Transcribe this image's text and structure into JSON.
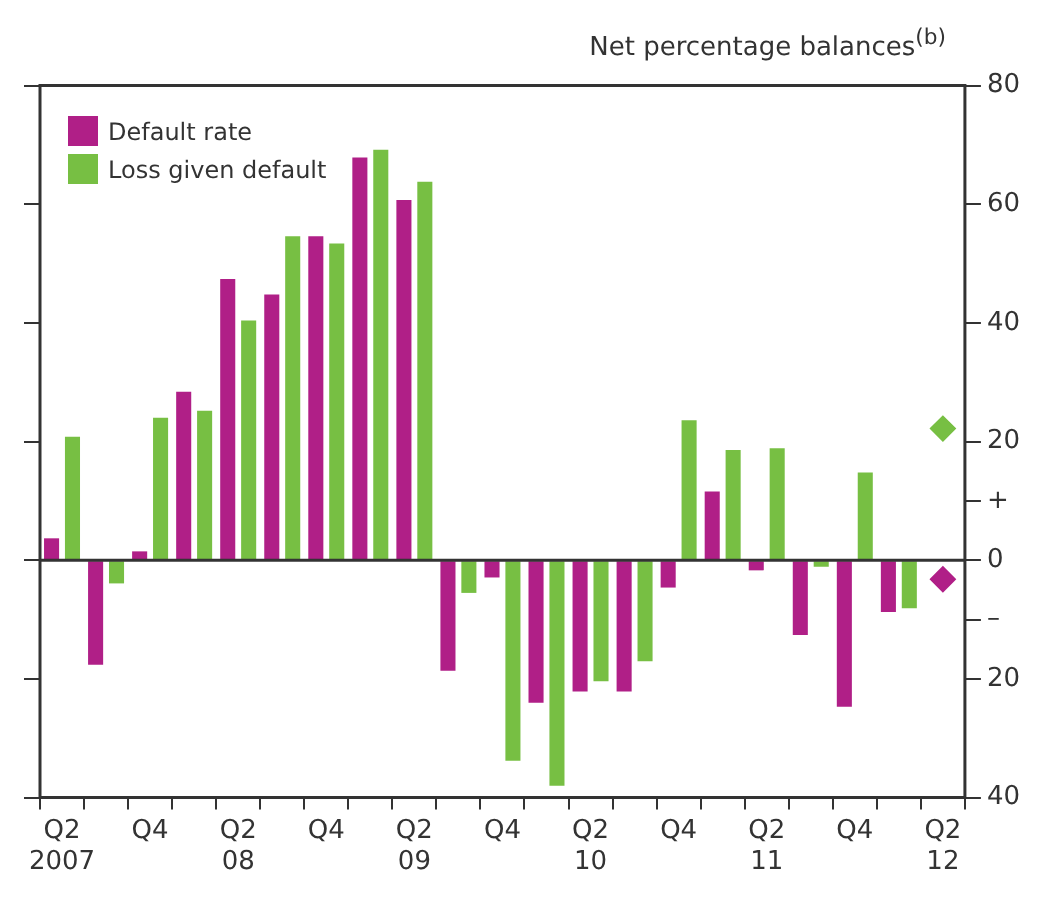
{
  "chart_data": {
    "type": "bar",
    "ylabel": "Net percentage balances$^{(b)}$",
    "categories": [
      "Q2\n2007",
      null,
      "Q4",
      null,
      "Q2\n08",
      null,
      "Q4",
      null,
      "Q2\n09",
      null,
      "Q4",
      null,
      "Q2\n10",
      null,
      "Q4",
      null,
      "Q2\n11",
      null,
      "Q4",
      null,
      "Q2\n12"
    ],
    "series": [
      {
        "name": "Default rate",
        "color": "#b01f87",
        "values": [
          3.7,
          -17.6,
          1.5,
          28.4,
          47.4,
          44.8,
          54.6,
          67.9,
          60.7,
          -18.6,
          -2.9,
          -24,
          -22.1,
          -22.1,
          -4.6,
          11.6,
          -1.7,
          -12.6,
          -24.7,
          -8.7,
          null
        ]
      },
      {
        "name": "Loss given default",
        "color": "#77bf43",
        "values": [
          20.8,
          -3.9,
          24,
          25.2,
          40.4,
          54.6,
          53.4,
          69.2,
          63.8,
          -5.5,
          -33.8,
          -38,
          -20.4,
          -17,
          23.6,
          18.6,
          18.9,
          -1.1,
          14.8,
          -8.1,
          null
        ]
      },
      {
        "type": "scatter",
        "color": "#b01f87",
        "values": [
          null,
          null,
          null,
          null,
          null,
          null,
          null,
          null,
          null,
          null,
          null,
          null,
          null,
          null,
          null,
          null,
          null,
          null,
          null,
          null,
          -3.2
        ]
      },
      {
        "type": "scatter",
        "color": "#77bf43",
        "values": [
          null,
          null,
          null,
          null,
          null,
          null,
          null,
          null,
          null,
          null,
          null,
          null,
          null,
          null,
          null,
          null,
          null,
          null,
          null,
          null,
          22.2
        ]
      }
    ],
    "ylim": [
      -40,
      80
    ],
    "yticks": [
      80,
      60,
      40,
      {
        "value": 10,
        "label": "+"
      },
      20,
      0,
      {
        "value": -10,
        "label": "–"
      },
      {
        "value": -20,
        "label": "20"
      },
      {
        "value": -40,
        "label": "40"
      }
    ],
    "marker": "diamond",
    "legend": "top left"
  }
}
